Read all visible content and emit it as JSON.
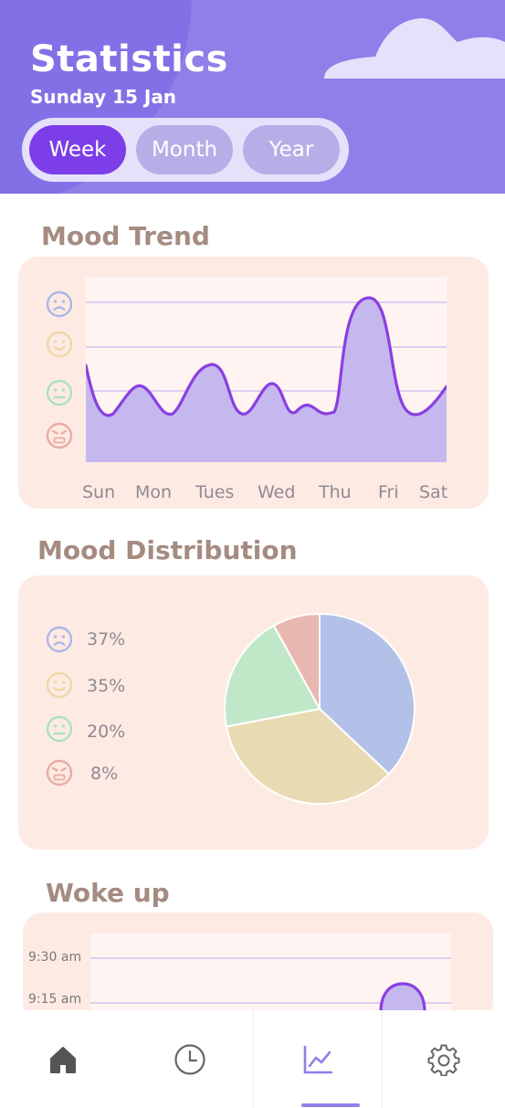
{
  "header": {
    "title": "Statistics",
    "date": "Sunday 15 Jan",
    "tabs": [
      {
        "label": "Week",
        "active": true
      },
      {
        "label": "Month",
        "active": false
      },
      {
        "label": "Year",
        "active": false
      }
    ]
  },
  "mood_trend": {
    "title": "Mood Trend",
    "days": [
      "Sun",
      "Mon",
      "Tues",
      "Wed",
      "Thu",
      "Fri",
      "Sat"
    ],
    "mood_icons": [
      "sad-face-icon",
      "happy-face-icon",
      "neutral-face-icon",
      "angry-face-icon"
    ]
  },
  "mood_distribution": {
    "title": "Mood Distribution",
    "items": [
      {
        "icon": "sad-face-icon",
        "percent": "37%",
        "value": 37,
        "color": "#b3c1e8"
      },
      {
        "icon": "happy-face-icon",
        "percent": "35%",
        "value": 35,
        "color": "#e8dbb3"
      },
      {
        "icon": "neutral-face-icon",
        "percent": "20%",
        "value": 20,
        "color": "#c0e8c8"
      },
      {
        "icon": "angry-face-icon",
        "percent": "8%",
        "value": 8,
        "color": "#e8b8b0"
      }
    ]
  },
  "woke_up": {
    "title": "Woke up",
    "times": [
      "9:30 am",
      "9:15 am"
    ]
  },
  "nav": {
    "items": [
      "home-icon",
      "clock-icon",
      "chart-icon",
      "settings-icon"
    ],
    "active": "chart-icon"
  },
  "colors": {
    "header": "#8f7fe8",
    "accent": "#7c3ee8",
    "card": "#fdeae3",
    "heading": "#a58b80"
  }
}
